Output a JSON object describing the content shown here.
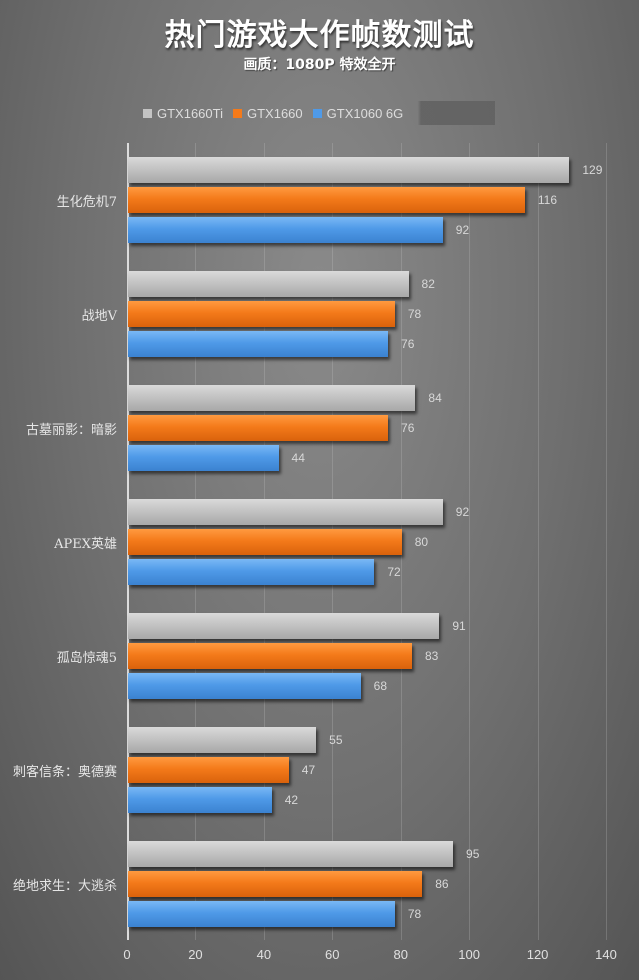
{
  "header": {
    "title": "热门游戏大作帧数测试",
    "subtitle": "画质：1080P 特效全开"
  },
  "legend": [
    {
      "label": "GTX1660Ti",
      "color": "#c4c4c4"
    },
    {
      "label": "GTX1660",
      "color": "#f47a1a"
    },
    {
      "label": "GTX1060 6G",
      "color": "#4f9ae8"
    }
  ],
  "chart_data": {
    "type": "bar",
    "orientation": "horizontal",
    "title": "热门游戏大作帧数测试",
    "subtitle": "画质：1080P 特效全开",
    "xlabel": "",
    "ylabel": "",
    "xlim": [
      0,
      140
    ],
    "xticks": [
      0,
      20,
      40,
      60,
      80,
      100,
      120,
      140
    ],
    "grid": true,
    "legend_position": "top",
    "categories": [
      "生化危机7",
      "战地V",
      "古墓丽影：暗影",
      "APEX英雄",
      "孤岛惊魂5",
      "刺客信条：奥德赛",
      "绝地求生：大逃杀"
    ],
    "series": [
      {
        "name": "GTX1660Ti",
        "color": "#c4c4c4",
        "values": [
          129,
          82,
          84,
          92,
          91,
          55,
          95
        ]
      },
      {
        "name": "GTX1660",
        "color": "#f47a1a",
        "values": [
          116,
          78,
          76,
          80,
          83,
          47,
          86
        ]
      },
      {
        "name": "GTX1060 6G",
        "color": "#4f9ae8",
        "values": [
          92,
          76,
          44,
          72,
          68,
          42,
          78
        ]
      }
    ]
  }
}
